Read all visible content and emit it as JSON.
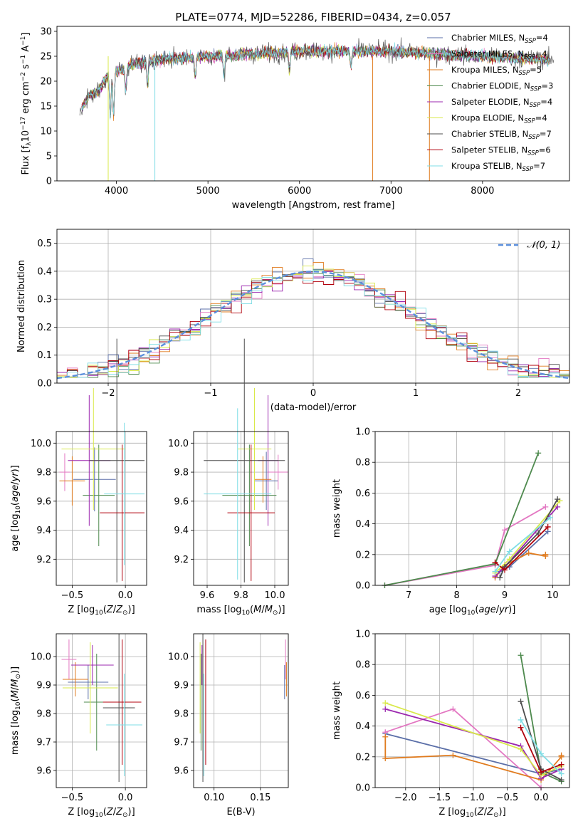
{
  "figure_title": "PLATE=0774, MJD=52286, FIBERID=0434, z=0.057",
  "series": [
    {
      "name": "Chabrier MILES",
      "nssp": "4",
      "color": "#5b6fa8"
    },
    {
      "name": "Salpeter MILES",
      "nssp": "4",
      "color": "#e377c2"
    },
    {
      "name": "Kroupa MILES",
      "nssp": "5",
      "color": "#e07b1e"
    },
    {
      "name": "Chabrier ELODIE",
      "nssp": "3",
      "color": "#4e8a4e"
    },
    {
      "name": "Salpeter ELODIE",
      "nssp": "4",
      "color": "#9b27af"
    },
    {
      "name": "Kroupa ELODIE",
      "nssp": "4",
      "color": "#d9e94a"
    },
    {
      "name": "Chabrier STELIB",
      "nssp": "7",
      "color": "#4d4d4d"
    },
    {
      "name": "Salpeter STELIB",
      "nssp": "6",
      "color": "#b0000c"
    },
    {
      "name": "Kroupa STELIB",
      "nssp": "7",
      "color": "#7fdde5"
    }
  ],
  "chart_data": [
    {
      "type": "line",
      "id": "spectrum",
      "title": "PLATE=0774, MJD=52286, FIBERID=0434, z=0.057",
      "xlabel": "wavelength [Angstrom, rest frame]",
      "ylabel": "Flux [f_λ10^-17 erg cm^-2 s^-1 A^-1]",
      "xlim": [
        3350,
        8950
      ],
      "ylim": [
        0,
        31
      ],
      "xticks": [
        4000,
        5000,
        6000,
        7000,
        8000
      ],
      "yticks": [
        0,
        5,
        10,
        15,
        20,
        25,
        30
      ],
      "continuum": {
        "x": [
          3600,
          3700,
          3800,
          3900,
          4000,
          4200,
          4500,
          5000,
          5500,
          6000,
          6500,
          7000,
          7500,
          8000,
          8500,
          8950
        ],
        "y": [
          14,
          17,
          18,
          21,
          22,
          23.5,
          24.5,
          25,
          25.5,
          26,
          26,
          26,
          25.5,
          25,
          24.5,
          24
        ]
      },
      "absorption": [
        {
          "x": 3933,
          "y": 13
        },
        {
          "x": 3968,
          "y": 13.5
        },
        {
          "x": 4101,
          "y": 18
        },
        {
          "x": 4340,
          "y": 19
        },
        {
          "x": 4861,
          "y": 21
        },
        {
          "x": 5175,
          "y": 21
        },
        {
          "x": 5890,
          "y": 22
        },
        {
          "x": 6563,
          "y": 23
        }
      ]
    },
    {
      "type": "bar",
      "id": "residuals",
      "xlabel": "(data-model)/error",
      "ylabel": "Normed distribution",
      "xlim": [
        -2.5,
        2.5
      ],
      "ylim": [
        0,
        0.55
      ],
      "xticks": [
        -2,
        -1,
        0,
        1,
        2
      ],
      "yticks": [
        0,
        0.1,
        0.2,
        0.3,
        0.4,
        0.5
      ],
      "bin_width": 0.1,
      "reference": {
        "name": "N(0,1)",
        "mean": 0,
        "sigma": 1
      }
    },
    {
      "type": "scatter",
      "id": "age_vs_Z",
      "xlabel": "Z [log10(Z/Z_sun)]",
      "ylabel": "age [log10(age/yr)]",
      "xlim": [
        -0.65,
        0.2
      ],
      "ylim": [
        9.02,
        10.08
      ],
      "xticks": [
        -0.5,
        0.0
      ],
      "yticks": [
        9.2,
        9.4,
        9.6,
        9.8,
        10.0
      ],
      "points": [
        {
          "x": -0.29,
          "y": 9.75,
          "xerr": 0.2,
          "yerr": 0.22
        },
        {
          "x": -0.57,
          "y": 9.8,
          "xerr": 0.05,
          "yerr": 0.13
        },
        {
          "x": -0.5,
          "y": 9.74,
          "xerr": 0.12,
          "yerr": 0.17
        },
        {
          "x": -0.25,
          "y": 9.64,
          "xerr": 0.15,
          "yerr": 0.35
        },
        {
          "x": -0.34,
          "y": 9.88,
          "xerr": 0.2,
          "yerr": 0.45
        },
        {
          "x": -0.3,
          "y": 9.96,
          "xerr": 0.3,
          "yerr": 0.42
        },
        {
          "x": -0.08,
          "y": 9.88,
          "xerr": 0.26,
          "yerr": 0.84
        },
        {
          "x": -0.03,
          "y": 9.52,
          "xerr": 0.21,
          "yerr": 0.47
        },
        {
          "x": -0.01,
          "y": 9.65,
          "xerr": 0.19,
          "yerr": 0.49
        }
      ]
    },
    {
      "type": "scatter",
      "id": "age_vs_mass",
      "xlabel": "mass [log10(M/M_sun)]",
      "ylabel": "",
      "xlim": [
        9.52,
        10.08
      ],
      "ylim": [
        9.02,
        10.08
      ],
      "xticks": [
        9.6,
        9.8,
        10.0
      ],
      "yticks": [
        9.2,
        9.4,
        9.6,
        9.8,
        10.0
      ],
      "points": [
        {
          "x": 9.95,
          "y": 9.74,
          "xerr": 0.07,
          "yerr": 0.2
        },
        {
          "x": 10.02,
          "y": 9.8,
          "xerr": 0.06,
          "yerr": 0.12
        },
        {
          "x": 9.93,
          "y": 9.75,
          "xerr": 0.05,
          "yerr": 0.16
        },
        {
          "x": 9.85,
          "y": 9.64,
          "xerr": 0.16,
          "yerr": 0.35
        },
        {
          "x": 9.96,
          "y": 9.88,
          "xerr": 0.06,
          "yerr": 0.45
        },
        {
          "x": 9.88,
          "y": 9.96,
          "xerr": 0.1,
          "yerr": 0.42
        },
        {
          "x": 9.82,
          "y": 9.88,
          "xerr": 0.24,
          "yerr": 0.84
        },
        {
          "x": 9.86,
          "y": 9.52,
          "xerr": 0.14,
          "yerr": 0.47
        },
        {
          "x": 9.78,
          "y": 9.65,
          "xerr": 0.2,
          "yerr": 0.59
        }
      ]
    },
    {
      "type": "line",
      "id": "massweight_vs_age",
      "xlabel": "age [log10(age/yr)]",
      "ylabel": "mass weight",
      "xlim": [
        6.3,
        10.35
      ],
      "ylim": [
        0,
        1.0
      ],
      "xticks": [
        7,
        8,
        9,
        10
      ],
      "yticks": [
        0.0,
        0.2,
        0.4,
        0.6,
        0.8,
        1.0
      ],
      "lines": [
        {
          "x": [
            8.9,
            9.1,
            9.9
          ],
          "y": [
            0.09,
            0.12,
            0.35
          ]
        },
        {
          "x": [
            6.5,
            8.8,
            9.0,
            9.85
          ],
          "y": [
            0,
            0.13,
            0.36,
            0.51
          ]
        },
        {
          "x": [
            8.8,
            9.0,
            9.5,
            9.85,
            9.85
          ],
          "y": [
            0.05,
            0.13,
            0.21,
            0.19,
            0.2
          ]
        },
        {
          "x": [
            6.5,
            8.8,
            9.7
          ],
          "y": [
            0,
            0.14,
            0.86
          ]
        },
        {
          "x": [
            8.8,
            9.0,
            10.1
          ],
          "y": [
            0.06,
            0.12,
            0.51
          ]
        },
        {
          "x": [
            8.8,
            9.1,
            10.15
          ],
          "y": [
            0.08,
            0.17,
            0.55
          ]
        },
        {
          "x": [
            8.9,
            9.0,
            9.7,
            10.1
          ],
          "y": [
            0.05,
            0.12,
            0.34,
            0.56
          ]
        },
        {
          "x": [
            8.8,
            9.0,
            9.9
          ],
          "y": [
            0.15,
            0.1,
            0.38
          ]
        },
        {
          "x": [
            8.8,
            9.1,
            9.95
          ],
          "y": [
            0.09,
            0.22,
            0.44
          ]
        }
      ]
    },
    {
      "type": "scatter",
      "id": "mass_vs_Z",
      "xlabel": "Z [log10(Z/Z_sun)]",
      "ylabel": "mass [log10(M/M_sun)]",
      "xlim": [
        -0.65,
        0.2
      ],
      "ylim": [
        9.54,
        10.08
      ],
      "xticks": [
        -0.5,
        0.0
      ],
      "yticks": [
        9.6,
        9.7,
        9.8,
        9.9,
        10.0
      ],
      "points": [
        {
          "x": -0.35,
          "y": 9.91,
          "xerr": 0.19,
          "yerr": 0.06
        },
        {
          "x": -0.53,
          "y": 9.99,
          "xerr": 0.07,
          "yerr": 0.07
        },
        {
          "x": -0.47,
          "y": 9.92,
          "xerr": 0.12,
          "yerr": 0.06
        },
        {
          "x": -0.27,
          "y": 9.84,
          "xerr": 0.12,
          "yerr": 0.17
        },
        {
          "x": -0.31,
          "y": 9.97,
          "xerr": 0.2,
          "yerr": 0.07
        },
        {
          "x": -0.33,
          "y": 9.89,
          "xerr": 0.26,
          "yerr": 0.16
        },
        {
          "x": -0.06,
          "y": 9.82,
          "xerr": 0.15,
          "yerr": 0.26
        },
        {
          "x": -0.03,
          "y": 9.84,
          "xerr": 0.18,
          "yerr": 0.22
        },
        {
          "x": -0.01,
          "y": 9.76,
          "xerr": 0.17,
          "yerr": 0.18
        }
      ]
    },
    {
      "type": "scatter",
      "id": "mass_vs_ebv",
      "xlabel": "E(B-V)",
      "ylabel": "",
      "xlim": [
        0.078,
        0.18
      ],
      "ylim": [
        9.54,
        10.08
      ],
      "xticks": [
        0.1,
        0.15
      ],
      "yticks": [
        9.6,
        9.7,
        9.8,
        9.9,
        10.0
      ],
      "points": [
        {
          "x": 0.176,
          "y": 9.91,
          "xerr": 0.0,
          "yerr": 0.06
        },
        {
          "x": 0.177,
          "y": 9.99,
          "xerr": 0.0,
          "yerr": 0.07
        },
        {
          "x": 0.178,
          "y": 9.92,
          "xerr": 0.0,
          "yerr": 0.06
        },
        {
          "x": 0.086,
          "y": 9.84,
          "xerr": 0.0,
          "yerr": 0.17
        },
        {
          "x": 0.087,
          "y": 9.97,
          "xerr": 0.0,
          "yerr": 0.07
        },
        {
          "x": 0.085,
          "y": 9.89,
          "xerr": 0.0,
          "yerr": 0.16
        },
        {
          "x": 0.088,
          "y": 9.82,
          "xerr": 0.0,
          "yerr": 0.26
        },
        {
          "x": 0.091,
          "y": 9.84,
          "xerr": 0.0,
          "yerr": 0.22
        },
        {
          "x": 0.089,
          "y": 9.76,
          "xerr": 0.0,
          "yerr": 0.18
        }
      ]
    },
    {
      "type": "line",
      "id": "massweight_vs_Z",
      "xlabel": "Z [log10(Z/Z_sun)]",
      "ylabel": "mass weight",
      "xlim": [
        -2.45,
        0.42
      ],
      "ylim": [
        0,
        1.0
      ],
      "xticks": [
        -2.0,
        -1.5,
        -1.0,
        -0.5,
        0.0
      ],
      "yticks": [
        0.0,
        0.2,
        0.4,
        0.6,
        0.8,
        1.0
      ],
      "lines": [
        {
          "x": [
            -2.3,
            0.0,
            0.3
          ],
          "y": [
            0.35,
            0.09,
            0.12
          ]
        },
        {
          "x": [
            -2.3,
            -1.3,
            0.0
          ],
          "y": [
            0.36,
            0.51,
            0.0
          ]
        },
        {
          "x": [
            -2.3,
            -2.3,
            -1.3,
            0.0,
            0.3,
            0.3
          ],
          "y": [
            0.33,
            0.19,
            0.21,
            0.05,
            0.2,
            0.21
          ]
        },
        {
          "x": [
            -0.3,
            0.0,
            0.3
          ],
          "y": [
            0.86,
            0.1,
            0.04
          ]
        },
        {
          "x": [
            -2.3,
            -0.3,
            0.0,
            0.3
          ],
          "y": [
            0.51,
            0.27,
            0.06,
            0.12
          ]
        },
        {
          "x": [
            -2.3,
            -0.3,
            0.0,
            0.3
          ],
          "y": [
            0.55,
            0.25,
            0.08,
            0.14
          ]
        },
        {
          "x": [
            -0.3,
            0.0,
            0.3
          ],
          "y": [
            0.56,
            0.12,
            0.05
          ]
        },
        {
          "x": [
            -0.3,
            0.0,
            0.3
          ],
          "y": [
            0.39,
            0.1,
            0.15
          ]
        },
        {
          "x": [
            -0.3,
            0.0,
            0.3
          ],
          "y": [
            0.44,
            0.22,
            0.09
          ]
        }
      ]
    }
  ]
}
